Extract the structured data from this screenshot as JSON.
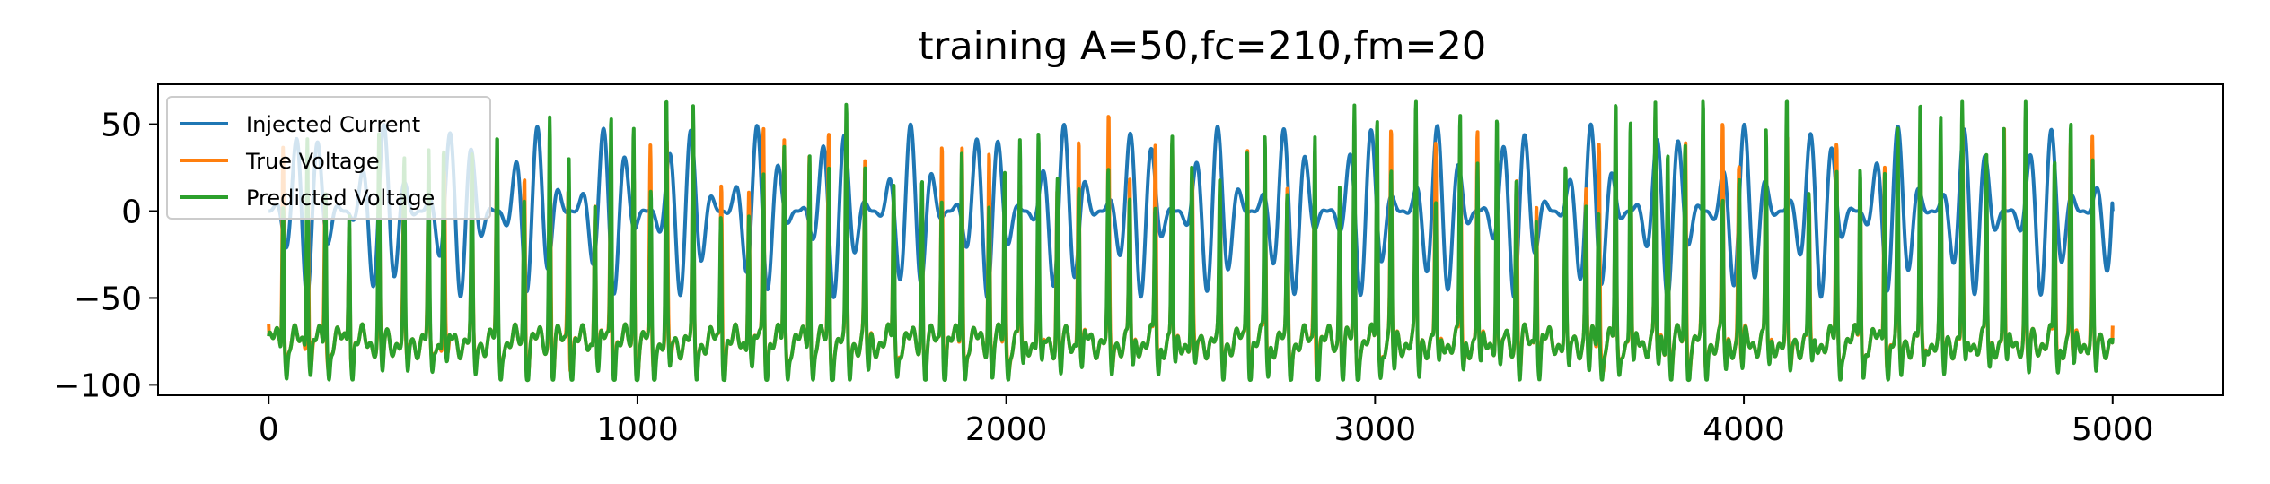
{
  "chart_data": {
    "type": "line",
    "title": "training A=50,fc=210,fm=20",
    "xlabel": "",
    "ylabel": "",
    "xlim": [
      -300,
      5300
    ],
    "ylim": [
      -106,
      73
    ],
    "xticks": [
      0,
      1000,
      2000,
      3000,
      4000,
      5000
    ],
    "yticks": [
      -100,
      -50,
      0,
      50
    ],
    "xtick_labels": [
      "0",
      "1000",
      "2000",
      "3000",
      "4000",
      "5000"
    ],
    "ytick_labels": [
      "−100",
      "−50",
      "0",
      "50"
    ],
    "grid": false,
    "legend_position": "top-left",
    "x_range": [
      0,
      5000
    ],
    "series": [
      {
        "name": "Injected Current",
        "color": "#1f77b4",
        "kind": "am_wave",
        "amplitude": 50,
        "carrier_period": 59.5,
        "modulation_period": 205,
        "start_value": 0,
        "end_value": 0
      },
      {
        "name": "True Voltage",
        "color": "#ff7f0e",
        "kind": "spike_train",
        "baseline": -75,
        "spike_peak": 60,
        "trough": -92,
        "start_value": -65,
        "end_value": -66
      },
      {
        "name": "Predicted Voltage",
        "color": "#2ca02c",
        "kind": "spike_train",
        "baseline": -75,
        "spike_peak": 63,
        "trough": -97,
        "start_value": -72,
        "end_value": -73
      }
    ]
  }
}
